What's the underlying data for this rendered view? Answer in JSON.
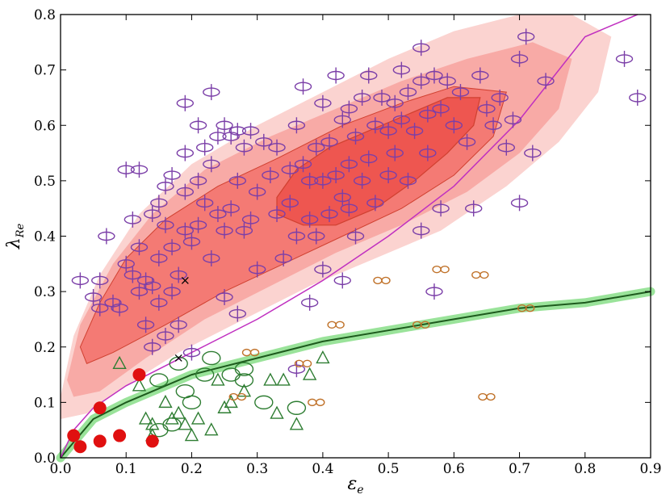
{
  "chart_data": {
    "type": "scatter",
    "title": "",
    "xlabel": "ε",
    "xlabel_sub": "e",
    "ylabel": "λ",
    "ylabel_sub": "Re",
    "xlim": [
      0.0,
      0.9
    ],
    "ylim": [
      0.0,
      0.8
    ],
    "x_ticks": [
      "0.0",
      "0.1",
      "0.2",
      "0.3",
      "0.4",
      "0.5",
      "0.6",
      "0.7",
      "0.8",
      "0.9"
    ],
    "y_ticks": [
      "0.0",
      "0.1",
      "0.2",
      "0.3",
      "0.4",
      "0.5",
      "0.6",
      "0.7",
      "0.8"
    ],
    "colors": {
      "fast": "#7b3fa8",
      "slow": "#2e7d32",
      "twin": "#c0722a",
      "red": "#e01010",
      "purple_line": "#c030c0",
      "green_band": "#8fe08f",
      "green_line": "#1d5a1d",
      "contour_outer": "#fbd3d0",
      "contour_mid": "#f8aaa6",
      "contour_inner": "#f47a74",
      "contour_core": "#ee5650",
      "contour_edge": "#d04030"
    },
    "contours": {
      "outer": [
        [
          0.0,
          0.11
        ],
        [
          0.02,
          0.22
        ],
        [
          0.06,
          0.33
        ],
        [
          0.12,
          0.44
        ],
        [
          0.2,
          0.53
        ],
        [
          0.3,
          0.6
        ],
        [
          0.4,
          0.66
        ],
        [
          0.5,
          0.72
        ],
        [
          0.6,
          0.77
        ],
        [
          0.7,
          0.8
        ],
        [
          0.78,
          0.8
        ],
        [
          0.84,
          0.76
        ],
        [
          0.82,
          0.66
        ],
        [
          0.76,
          0.57
        ],
        [
          0.68,
          0.49
        ],
        [
          0.58,
          0.41
        ],
        [
          0.48,
          0.36
        ],
        [
          0.38,
          0.31
        ],
        [
          0.28,
          0.25
        ],
        [
          0.18,
          0.19
        ],
        [
          0.1,
          0.13
        ],
        [
          0.04,
          0.08
        ],
        [
          0.0,
          0.07
        ]
      ],
      "mid": [
        [
          0.01,
          0.14
        ],
        [
          0.03,
          0.24
        ],
        [
          0.08,
          0.35
        ],
        [
          0.14,
          0.44
        ],
        [
          0.22,
          0.52
        ],
        [
          0.32,
          0.58
        ],
        [
          0.42,
          0.63
        ],
        [
          0.52,
          0.68
        ],
        [
          0.62,
          0.72
        ],
        [
          0.72,
          0.75
        ],
        [
          0.78,
          0.72
        ],
        [
          0.76,
          0.63
        ],
        [
          0.7,
          0.55
        ],
        [
          0.62,
          0.48
        ],
        [
          0.52,
          0.42
        ],
        [
          0.42,
          0.37
        ],
        [
          0.32,
          0.31
        ],
        [
          0.22,
          0.25
        ],
        [
          0.13,
          0.18
        ],
        [
          0.06,
          0.12
        ],
        [
          0.02,
          0.11
        ]
      ],
      "inner": [
        [
          0.03,
          0.2
        ],
        [
          0.06,
          0.28
        ],
        [
          0.1,
          0.36
        ],
        [
          0.16,
          0.43
        ],
        [
          0.24,
          0.49
        ],
        [
          0.33,
          0.54
        ],
        [
          0.43,
          0.6
        ],
        [
          0.52,
          0.64
        ],
        [
          0.6,
          0.67
        ],
        [
          0.68,
          0.66
        ],
        [
          0.66,
          0.58
        ],
        [
          0.6,
          0.51
        ],
        [
          0.52,
          0.45
        ],
        [
          0.43,
          0.4
        ],
        [
          0.34,
          0.35
        ],
        [
          0.25,
          0.3
        ],
        [
          0.16,
          0.24
        ],
        [
          0.08,
          0.19
        ],
        [
          0.04,
          0.17
        ]
      ],
      "core": [
        [
          0.33,
          0.47
        ],
        [
          0.36,
          0.52
        ],
        [
          0.41,
          0.56
        ],
        [
          0.47,
          0.59
        ],
        [
          0.53,
          0.62
        ],
        [
          0.59,
          0.65
        ],
        [
          0.64,
          0.65
        ],
        [
          0.63,
          0.6
        ],
        [
          0.59,
          0.55
        ],
        [
          0.54,
          0.5
        ],
        [
          0.48,
          0.45
        ],
        [
          0.42,
          0.42
        ],
        [
          0.37,
          0.42
        ],
        [
          0.33,
          0.44
        ]
      ]
    },
    "fast_points": [
      [
        0.03,
        0.32
      ],
      [
        0.05,
        0.29
      ],
      [
        0.06,
        0.27
      ],
      [
        0.06,
        0.32
      ],
      [
        0.07,
        0.4
      ],
      [
        0.08,
        0.28
      ],
      [
        0.09,
        0.27
      ],
      [
        0.1,
        0.52
      ],
      [
        0.1,
        0.35
      ],
      [
        0.11,
        0.43
      ],
      [
        0.11,
        0.33
      ],
      [
        0.12,
        0.3
      ],
      [
        0.12,
        0.52
      ],
      [
        0.12,
        0.38
      ],
      [
        0.13,
        0.32
      ],
      [
        0.13,
        0.24
      ],
      [
        0.14,
        0.44
      ],
      [
        0.14,
        0.31
      ],
      [
        0.14,
        0.2
      ],
      [
        0.15,
        0.46
      ],
      [
        0.15,
        0.36
      ],
      [
        0.15,
        0.28
      ],
      [
        0.16,
        0.49
      ],
      [
        0.16,
        0.42
      ],
      [
        0.16,
        0.22
      ],
      [
        0.17,
        0.51
      ],
      [
        0.17,
        0.38
      ],
      [
        0.17,
        0.3
      ],
      [
        0.18,
        0.33
      ],
      [
        0.18,
        0.24
      ],
      [
        0.19,
        0.64
      ],
      [
        0.19,
        0.55
      ],
      [
        0.19,
        0.48
      ],
      [
        0.19,
        0.41
      ],
      [
        0.2,
        0.39
      ],
      [
        0.2,
        0.19
      ],
      [
        0.21,
        0.6
      ],
      [
        0.21,
        0.5
      ],
      [
        0.21,
        0.42
      ],
      [
        0.22,
        0.56
      ],
      [
        0.22,
        0.46
      ],
      [
        0.23,
        0.66
      ],
      [
        0.23,
        0.53
      ],
      [
        0.23,
        0.36
      ],
      [
        0.24,
        0.58
      ],
      [
        0.24,
        0.44
      ],
      [
        0.25,
        0.6
      ],
      [
        0.25,
        0.41
      ],
      [
        0.25,
        0.29
      ],
      [
        0.26,
        0.58
      ],
      [
        0.26,
        0.45
      ],
      [
        0.27,
        0.59
      ],
      [
        0.27,
        0.5
      ],
      [
        0.27,
        0.26
      ],
      [
        0.28,
        0.56
      ],
      [
        0.28,
        0.41
      ],
      [
        0.29,
        0.59
      ],
      [
        0.29,
        0.43
      ],
      [
        0.3,
        0.48
      ],
      [
        0.3,
        0.34
      ],
      [
        0.31,
        0.57
      ],
      [
        0.32,
        0.51
      ],
      [
        0.33,
        0.56
      ],
      [
        0.33,
        0.44
      ],
      [
        0.34,
        0.36
      ],
      [
        0.35,
        0.52
      ],
      [
        0.35,
        0.46
      ],
      [
        0.36,
        0.6
      ],
      [
        0.36,
        0.4
      ],
      [
        0.36,
        0.16
      ],
      [
        0.37,
        0.67
      ],
      [
        0.37,
        0.53
      ],
      [
        0.38,
        0.5
      ],
      [
        0.38,
        0.43
      ],
      [
        0.38,
        0.28
      ],
      [
        0.39,
        0.56
      ],
      [
        0.39,
        0.4
      ],
      [
        0.4,
        0.64
      ],
      [
        0.4,
        0.5
      ],
      [
        0.4,
        0.34
      ],
      [
        0.41,
        0.57
      ],
      [
        0.41,
        0.44
      ],
      [
        0.42,
        0.69
      ],
      [
        0.42,
        0.51
      ],
      [
        0.43,
        0.61
      ],
      [
        0.43,
        0.47
      ],
      [
        0.43,
        0.32
      ],
      [
        0.44,
        0.63
      ],
      [
        0.44,
        0.53
      ],
      [
        0.44,
        0.45
      ],
      [
        0.45,
        0.58
      ],
      [
        0.45,
        0.4
      ],
      [
        0.46,
        0.65
      ],
      [
        0.46,
        0.5
      ],
      [
        0.47,
        0.69
      ],
      [
        0.47,
        0.54
      ],
      [
        0.48,
        0.6
      ],
      [
        0.48,
        0.46
      ],
      [
        0.49,
        0.65
      ],
      [
        0.5,
        0.59
      ],
      [
        0.5,
        0.51
      ],
      [
        0.51,
        0.64
      ],
      [
        0.51,
        0.55
      ],
      [
        0.52,
        0.7
      ],
      [
        0.52,
        0.61
      ],
      [
        0.53,
        0.66
      ],
      [
        0.53,
        0.5
      ],
      [
        0.54,
        0.59
      ],
      [
        0.55,
        0.74
      ],
      [
        0.55,
        0.68
      ],
      [
        0.55,
        0.41
      ],
      [
        0.56,
        0.62
      ],
      [
        0.56,
        0.55
      ],
      [
        0.57,
        0.69
      ],
      [
        0.57,
        0.3
      ],
      [
        0.58,
        0.63
      ],
      [
        0.58,
        0.45
      ],
      [
        0.59,
        0.68
      ],
      [
        0.6,
        0.6
      ],
      [
        0.61,
        0.66
      ],
      [
        0.62,
        0.57
      ],
      [
        0.63,
        0.45
      ],
      [
        0.64,
        0.69
      ],
      [
        0.65,
        0.63
      ],
      [
        0.66,
        0.6
      ],
      [
        0.67,
        0.65
      ],
      [
        0.68,
        0.56
      ],
      [
        0.69,
        0.61
      ],
      [
        0.7,
        0.46
      ],
      [
        0.7,
        0.72
      ],
      [
        0.71,
        0.76
      ],
      [
        0.72,
        0.55
      ],
      [
        0.74,
        0.68
      ],
      [
        0.86,
        0.72
      ],
      [
        0.88,
        0.65
      ]
    ],
    "slow_ellipse_points": [
      [
        0.15,
        0.05
      ],
      [
        0.15,
        0.14
      ],
      [
        0.17,
        0.06
      ],
      [
        0.18,
        0.17
      ],
      [
        0.19,
        0.12
      ],
      [
        0.2,
        0.1
      ],
      [
        0.22,
        0.15
      ],
      [
        0.23,
        0.18
      ],
      [
        0.26,
        0.15
      ],
      [
        0.28,
        0.14
      ],
      [
        0.28,
        0.16
      ],
      [
        0.31,
        0.1
      ],
      [
        0.36,
        0.09
      ]
    ],
    "slow_triangle_points": [
      [
        0.09,
        0.17
      ],
      [
        0.12,
        0.13
      ],
      [
        0.13,
        0.07
      ],
      [
        0.14,
        0.06
      ],
      [
        0.14,
        0.04
      ],
      [
        0.16,
        0.1
      ],
      [
        0.17,
        0.07
      ],
      [
        0.18,
        0.08
      ],
      [
        0.19,
        0.06
      ],
      [
        0.2,
        0.04
      ],
      [
        0.21,
        0.07
      ],
      [
        0.23,
        0.05
      ],
      [
        0.24,
        0.14
      ],
      [
        0.25,
        0.09
      ],
      [
        0.26,
        0.1
      ],
      [
        0.28,
        0.12
      ],
      [
        0.32,
        0.14
      ],
      [
        0.33,
        0.08
      ],
      [
        0.34,
        0.14
      ],
      [
        0.36,
        0.06
      ],
      [
        0.38,
        0.15
      ],
      [
        0.4,
        0.18
      ]
    ],
    "twin_points": [
      [
        0.27,
        0.11
      ],
      [
        0.29,
        0.19
      ],
      [
        0.37,
        0.17
      ],
      [
        0.39,
        0.1
      ],
      [
        0.42,
        0.24
      ],
      [
        0.49,
        0.32
      ],
      [
        0.55,
        0.24
      ],
      [
        0.58,
        0.34
      ],
      [
        0.64,
        0.33
      ],
      [
        0.65,
        0.11
      ],
      [
        0.71,
        0.27
      ]
    ],
    "red_points": [
      [
        0.02,
        0.04
      ],
      [
        0.03,
        0.02
      ],
      [
        0.06,
        0.03
      ],
      [
        0.06,
        0.09
      ],
      [
        0.09,
        0.04
      ],
      [
        0.12,
        0.15
      ],
      [
        0.14,
        0.03
      ]
    ],
    "cross_points": [
      [
        0.19,
        0.32
      ],
      [
        0.18,
        0.18
      ]
    ],
    "purple_curve": [
      [
        0.0,
        0.0
      ],
      [
        0.02,
        0.05
      ],
      [
        0.05,
        0.09
      ],
      [
        0.1,
        0.13
      ],
      [
        0.15,
        0.16
      ],
      [
        0.2,
        0.19
      ],
      [
        0.3,
        0.25
      ],
      [
        0.4,
        0.32
      ],
      [
        0.5,
        0.4
      ],
      [
        0.6,
        0.49
      ],
      [
        0.7,
        0.61
      ],
      [
        0.8,
        0.76
      ],
      [
        0.88,
        0.8
      ]
    ],
    "green_curve": [
      [
        0.0,
        0.0
      ],
      [
        0.05,
        0.07
      ],
      [
        0.1,
        0.1
      ],
      [
        0.2,
        0.15
      ],
      [
        0.3,
        0.18
      ],
      [
        0.4,
        0.21
      ],
      [
        0.5,
        0.23
      ],
      [
        0.6,
        0.25
      ],
      [
        0.7,
        0.27
      ],
      [
        0.8,
        0.28
      ],
      [
        0.9,
        0.3
      ]
    ]
  }
}
